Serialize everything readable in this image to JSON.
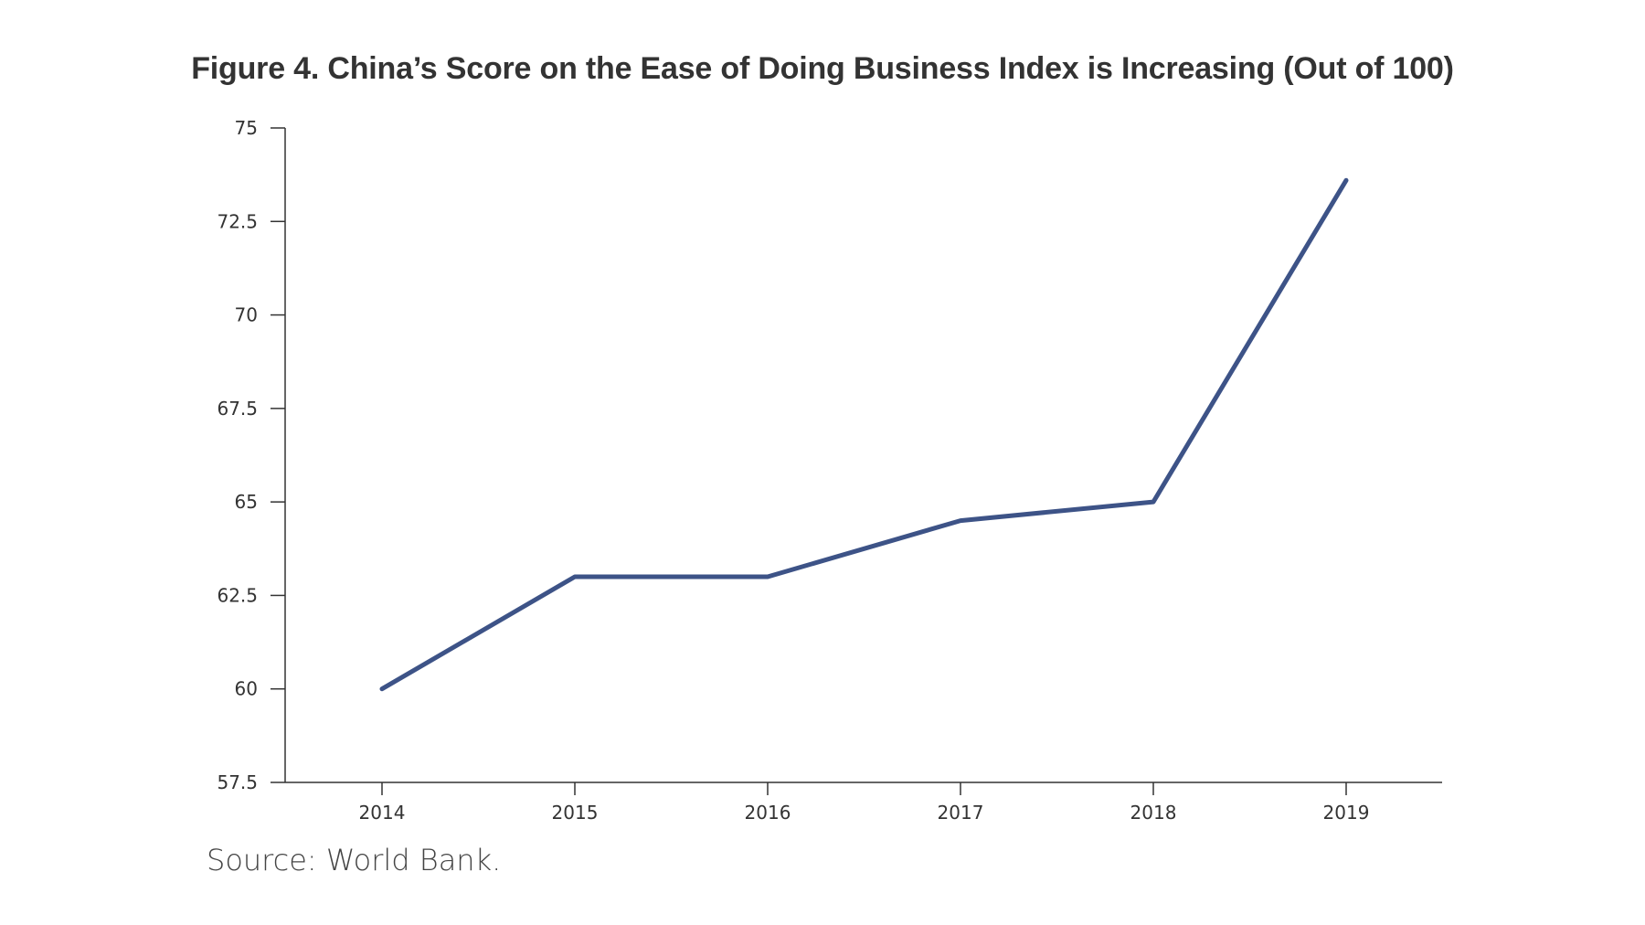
{
  "chart_data": {
    "type": "line",
    "title": "Figure 4. China’s Score on the Ease of Doing Business Index is Increasing (Out of 100)",
    "xlabel": "",
    "ylabel": "",
    "x": [
      "2014",
      "2015",
      "2016",
      "2017",
      "2018",
      "2019"
    ],
    "series": [
      {
        "values": [
          60.0,
          63.0,
          63.0,
          64.5,
          65.0,
          73.6
        ]
      }
    ],
    "yticks": [
      "57.5",
      "60",
      "62.5",
      "65",
      "67.5",
      "70",
      "72.5",
      "75"
    ],
    "ylim": [
      57.5,
      75
    ],
    "grid": false,
    "legend": "none",
    "line_color": "#3d5387",
    "axis_color": "#333333"
  },
  "source": "Source: World Bank."
}
